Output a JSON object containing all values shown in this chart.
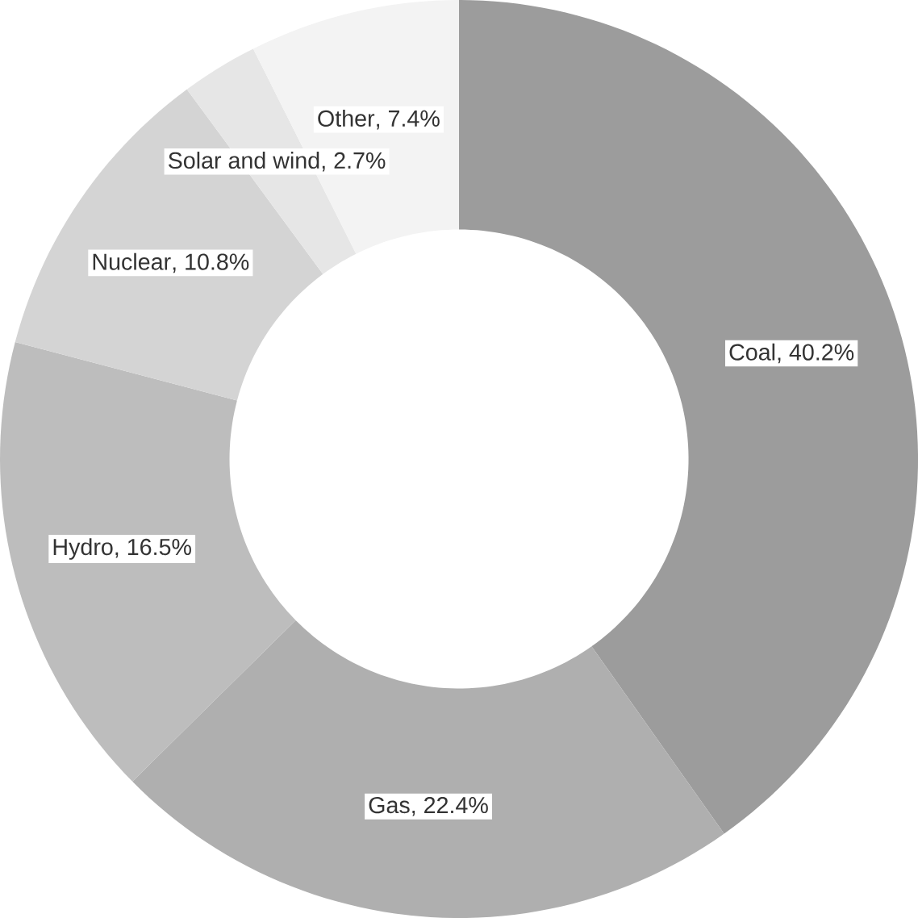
{
  "chart_data": {
    "type": "donut",
    "categories": [
      "Coal",
      "Gas",
      "Hydro",
      "Nuclear",
      "Solar and wind",
      "Other"
    ],
    "values": [
      40.2,
      22.4,
      16.5,
      10.8,
      2.7,
      7.4
    ],
    "value_labels": [
      ", 40.2%",
      ", 22.4%",
      ", 16.5%",
      ", 10.8%",
      ", 2.7%",
      ", 7.4%"
    ],
    "colors": [
      "#9c9c9c",
      "#afafaf",
      "#bdbdbd",
      "#d4d4d4",
      "#e6e6e6",
      "#f3f3f3"
    ]
  }
}
